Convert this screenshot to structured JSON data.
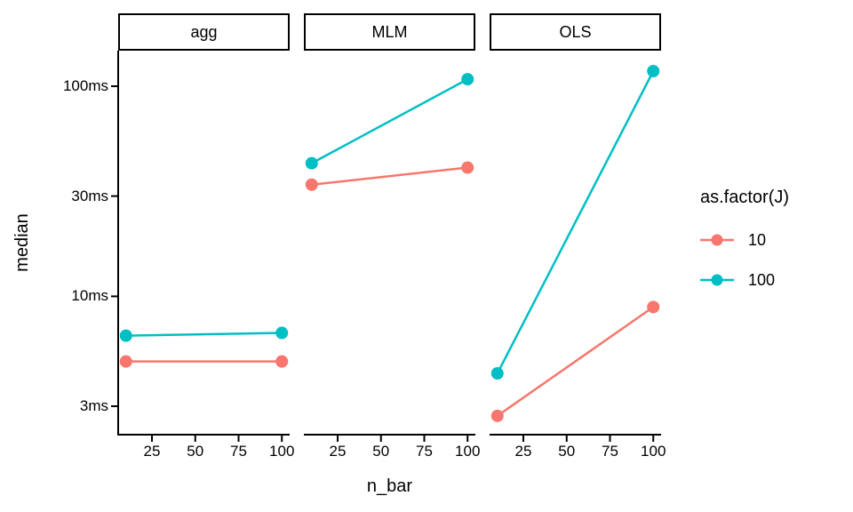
{
  "chart_data": {
    "type": "line",
    "title": "",
    "xlabel": "n_bar",
    "ylabel": "median",
    "x_scale": "linear",
    "y_scale": "log10",
    "units": "ms",
    "grid": false,
    "x_ticks": [
      "25",
      "50",
      "75",
      "100"
    ],
    "xlim": [
      5.5,
      104.5
    ],
    "y_ticks": [
      {
        "value": 100,
        "label": "100ms"
      },
      {
        "value": 30,
        "label": "30ms"
      },
      {
        "value": 10,
        "label": "10ms"
      },
      {
        "value": 3,
        "label": "3ms"
      }
    ],
    "facets": [
      {
        "label": "agg",
        "series": [
          {
            "name": "10",
            "color": "#F8766D",
            "x": [
              10,
              100
            ],
            "y": [
              4.9,
              4.9
            ]
          },
          {
            "name": "100",
            "color": "#00BFC4",
            "x": [
              10,
              100
            ],
            "y": [
              6.5,
              6.7
            ]
          }
        ]
      },
      {
        "label": "MLM",
        "series": [
          {
            "name": "10",
            "color": "#F8766D",
            "x": [
              10,
              100
            ],
            "y": [
              34,
              41
            ]
          },
          {
            "name": "100",
            "color": "#00BFC4",
            "x": [
              10,
              100
            ],
            "y": [
              43,
              108
            ]
          }
        ]
      },
      {
        "label": "OLS",
        "series": [
          {
            "name": "10",
            "color": "#F8766D",
            "x": [
              10,
              100
            ],
            "y": [
              2.7,
              8.9
            ]
          },
          {
            "name": "100",
            "color": "#00BFC4",
            "x": [
              10,
              100
            ],
            "y": [
              4.3,
              118
            ]
          }
        ]
      }
    ],
    "legend": {
      "title": "as.factor(J)",
      "position": "right",
      "entries": [
        {
          "label": "10",
          "color": "#F8766D"
        },
        {
          "label": "100",
          "color": "#00BFC4"
        }
      ]
    },
    "colors": {
      "axis": "#000000",
      "background": "#FFFFFF"
    }
  }
}
